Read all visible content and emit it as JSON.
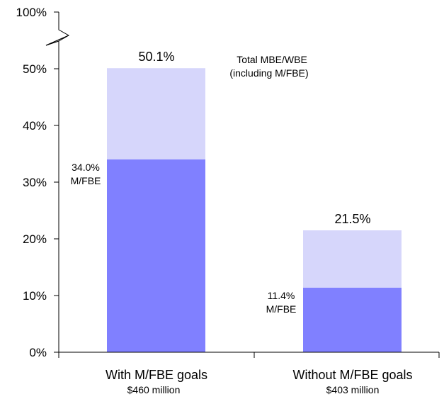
{
  "chart_data": {
    "type": "bar",
    "stacked": true,
    "categories": [
      "With M/FBE goals",
      "Without M/FBE goals"
    ],
    "category_subtitles": [
      "$460 million",
      "$403 million"
    ],
    "series": [
      {
        "values": [
          34.0,
          11.4
        ]
      },
      {
        "values": [
          16.1,
          10.1
        ]
      }
    ],
    "total_labels": [
      "50.1%",
      "21.5%"
    ],
    "inner_labels": [
      {
        "value": "34.0%",
        "name": "M/FBE"
      },
      {
        "value": "11.4%",
        "name": "M/FBE"
      }
    ],
    "annotation": [
      "Total MBE/WBE",
      "(including M/FBE)"
    ],
    "y_ticks": [
      "0%",
      "10%",
      "20%",
      "30%",
      "40%",
      "50%",
      "100%"
    ],
    "ylim": [
      0,
      50
    ],
    "axis_break": true,
    "grid": false,
    "colors": {
      "mfbe": "#8080ff",
      "total": "#d6d6fb",
      "axis": "#000000"
    }
  }
}
